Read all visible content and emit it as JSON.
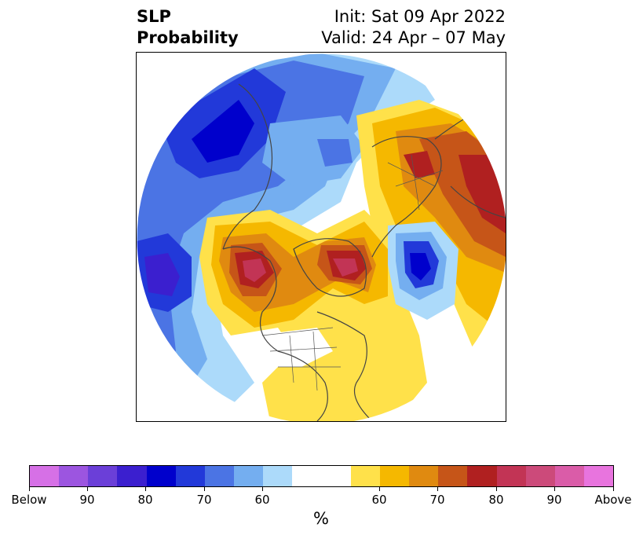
{
  "title": {
    "left_line1": "SLP",
    "left_line2": "Probability",
    "right_line1": "Init: Sat 09 Apr 2022",
    "right_line2": "Valid: 24 Apr – 07 May"
  },
  "colorbar": {
    "label": "%",
    "colors": [
      "#d670e6",
      "#9c55e0",
      "#6b3fd8",
      "#3b1fcf",
      "#0000cc",
      "#2239d9",
      "#4b74e4",
      "#74aef0",
      "#acdafa",
      "#ffffff",
      "#ffffff",
      "#ffe14a",
      "#f5b800",
      "#e08a10",
      "#c65518",
      "#b02020",
      "#c23455",
      "#cc4a7a",
      "#da5ca8",
      "#e874de"
    ],
    "tick_labels": [
      "Below",
      "90",
      "80",
      "70",
      "60",
      "60",
      "70",
      "80",
      "90",
      "Above"
    ]
  },
  "map": {
    "projection": "north-polar-stereographic",
    "colors": {
      "blue_pale": "#acdafa",
      "blue_light": "#74aef0",
      "blue_mid": "#4b74e4",
      "blue_royal": "#2239d9",
      "blue_deep": "#0000cc",
      "blue_violet": "#3b1fcf",
      "yellow": "#ffe14a",
      "gold": "#f5b800",
      "orange": "#e08a10",
      "rust": "#c65518",
      "red": "#b02020",
      "crimson": "#c23455"
    }
  }
}
